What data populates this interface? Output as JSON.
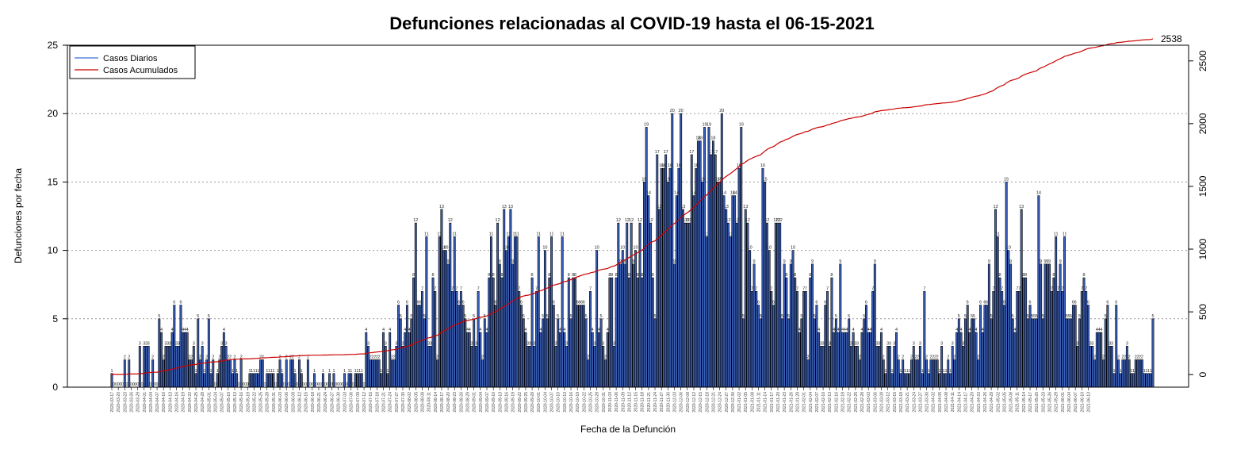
{
  "chart_data": {
    "type": "bar",
    "title": "Defunciones relacionadas al COVID-19 hasta el 06-15-2021",
    "xlabel": "Fecha de la Defunción",
    "ylabel": "Defunciones por fecha",
    "ylim": [
      0,
      25
    ],
    "y_ticks": [
      0,
      5,
      10,
      15,
      20,
      25
    ],
    "y2lim": [
      -100,
      2625
    ],
    "y2_ticks": [
      0,
      500,
      1000,
      1500,
      2000,
      2500
    ],
    "grid": "horizontal dotted",
    "legend_position": "top-left",
    "start_date": "2020-03-17",
    "end_date": "2021-06-15",
    "final_cumulative_label": "2538",
    "colors": {
      "bars": "#3a5fb8",
      "bar_edge": "#000000",
      "cumulative": "#cc0000",
      "daily_legend": "#3a6fd8"
    },
    "series": [
      {
        "name": "Casos Diarios",
        "type": "bar"
      },
      {
        "name": "Casos Acumulados",
        "type": "line"
      }
    ],
    "daily_values": [
      1,
      0,
      0,
      0,
      0,
      0,
      2,
      0,
      2,
      0,
      0,
      0,
      0,
      3,
      0,
      3,
      3,
      3,
      0,
      2,
      0,
      0,
      5,
      4,
      2,
      3,
      3,
      3,
      4,
      6,
      3,
      3,
      6,
      4,
      4,
      4,
      2,
      2,
      3,
      1,
      5,
      2,
      3,
      1,
      2,
      5,
      1,
      2,
      0,
      1,
      2,
      3,
      4,
      3,
      2,
      2,
      1,
      2,
      1,
      0,
      2,
      0,
      0,
      0,
      1,
      1,
      1,
      1,
      1,
      2,
      2,
      0,
      1,
      1,
      1,
      1,
      0,
      1,
      2,
      1,
      0,
      2,
      0,
      2,
      2,
      1,
      0,
      2,
      1,
      0,
      0,
      2,
      0,
      0,
      1,
      0,
      0,
      0,
      1,
      0,
      0,
      1,
      0,
      1,
      0,
      0,
      0,
      0,
      1,
      0,
      1,
      1,
      0,
      1,
      1,
      1,
      1,
      0,
      4,
      3,
      2,
      2,
      2,
      2,
      2,
      1,
      4,
      3,
      1,
      4,
      2,
      2,
      3,
      6,
      5,
      3,
      4,
      6,
      4,
      5,
      8,
      12,
      6,
      6,
      7,
      5,
      11,
      3,
      3,
      8,
      7,
      2,
      11,
      13,
      10,
      10,
      9,
      12,
      7,
      11,
      7,
      6,
      7,
      6,
      5,
      4,
      4,
      3,
      5,
      3,
      7,
      4,
      2,
      5,
      4,
      8,
      11,
      8,
      6,
      12,
      9,
      8,
      13,
      10,
      11,
      13,
      9,
      11,
      11,
      7,
      6,
      5,
      4,
      3,
      3,
      8,
      3,
      7,
      11,
      4,
      5,
      10,
      5,
      8,
      11,
      6,
      3,
      5,
      4,
      11,
      4,
      3,
      8,
      5,
      8,
      8,
      6,
      6,
      6,
      6,
      5,
      2,
      7,
      4,
      3,
      10,
      4,
      5,
      3,
      2,
      4,
      8,
      8,
      3,
      8,
      12,
      9,
      10,
      9,
      12,
      8,
      12,
      9,
      10,
      8,
      12,
      8,
      15,
      19,
      14,
      12,
      8,
      5,
      17,
      13,
      16,
      16,
      17,
      15,
      16,
      20,
      9,
      14,
      16,
      20,
      13,
      12,
      12,
      12,
      17,
      14,
      16,
      18,
      18,
      15,
      19,
      11,
      19,
      17,
      18,
      17,
      15,
      15,
      20,
      14,
      13,
      12,
      11,
      14,
      14,
      12,
      16,
      19,
      5,
      13,
      12,
      10,
      7,
      9,
      7,
      6,
      5,
      16,
      15,
      12,
      10,
      7,
      6,
      12,
      12,
      12,
      5,
      9,
      8,
      5,
      9,
      10,
      8,
      7,
      4,
      5,
      7,
      7,
      2,
      8,
      9,
      5,
      6,
      4,
      3,
      3,
      6,
      7,
      3,
      8,
      4,
      5,
      4,
      9,
      4,
      4,
      4,
      5,
      3,
      4,
      3,
      3,
      2,
      4,
      5,
      6,
      4,
      4,
      7,
      9,
      3,
      3,
      4,
      2,
      1,
      3,
      3,
      1,
      3,
      4,
      2,
      1,
      2,
      1,
      1,
      1,
      2,
      3,
      2,
      2,
      3,
      1,
      7,
      2,
      1,
      2,
      2,
      2,
      2,
      1,
      3,
      1,
      1,
      2,
      1,
      3,
      2,
      4,
      5,
      4,
      3,
      5,
      6,
      4,
      5,
      5,
      4,
      2,
      6,
      4,
      6,
      6,
      9,
      5,
      7,
      13,
      11,
      8,
      7,
      6,
      15,
      10,
      9,
      5,
      4,
      7,
      7,
      13,
      8,
      8,
      5,
      6,
      5,
      5,
      5,
      14,
      9,
      5,
      9,
      9,
      9,
      7,
      8,
      11,
      7,
      9,
      7,
      11,
      5,
      5,
      5,
      6,
      6,
      3,
      5,
      7,
      8,
      7,
      6,
      3,
      3,
      2,
      4,
      4,
      4,
      2,
      5,
      6,
      3,
      3,
      1,
      6,
      2,
      1,
      2,
      2,
      3,
      2,
      1,
      1,
      2,
      2,
      2,
      2,
      1,
      1,
      1,
      1,
      5
    ],
    "date_labels": [
      "2020-03-17",
      "2020-03-20",
      "2020-03-23",
      "2020-03-26",
      "2020-03-29",
      "2020-04-01",
      "2020-04-04",
      "2020-04-07",
      "2020-04-10",
      "2020-04-13",
      "2020-04-16",
      "2020-04-19",
      "2020-04-22",
      "2020-04-25",
      "2020-04-28",
      "2020-05-01",
      "2020-05-04",
      "2020-05-07",
      "2020-05-10",
      "2020-05-13",
      "2020-05-16",
      "2020-05-19",
      "2020-05-22",
      "2020-05-25",
      "2020-05-28",
      "2020-05-31",
      "2020-06-03",
      "2020-06-06",
      "2020-06-09",
      "2020-06-12",
      "2020-06-15",
      "2020-06-18",
      "2020-06-21",
      "2020-06-24",
      "2020-06-27",
      "2020-06-30",
      "2020-07-03",
      "2020-07-06",
      "2020-07-09",
      "2020-07-12",
      "2020-07-15",
      "2020-07-18",
      "2020-07-21",
      "2020-07-24",
      "2020-07-27",
      "2020-07-30",
      "2020-08-02",
      "2020-08-05",
      "2020-08-08",
      "2020-08-11",
      "2020-08-14",
      "2020-08-17",
      "2020-08-20",
      "2020-08-23",
      "2020-08-26",
      "2020-08-29",
      "2020-09-01",
      "2020-09-04",
      "2020-09-07",
      "2020-09-10",
      "2020-09-13",
      "2020-09-16",
      "2020-09-19",
      "2020-09-22",
      "2020-09-25",
      "2020-09-28",
      "2020-10-01",
      "2020-10-04",
      "2020-10-07",
      "2020-10-10",
      "2020-10-13",
      "2020-10-16",
      "2020-10-19",
      "2020-10-22",
      "2020-10-25",
      "2020-10-28",
      "2020-10-31",
      "2020-11-03",
      "2020-11-06",
      "2020-11-09",
      "2020-11-12",
      "2020-11-15",
      "2020-11-18",
      "2020-11-21",
      "2020-11-24",
      "2020-11-27",
      "2020-11-30",
      "2020-12-03",
      "2020-12-06",
      "2020-12-09",
      "2020-12-12",
      "2020-12-15",
      "2020-12-18",
      "2020-12-21",
      "2020-12-24",
      "2020-12-27",
      "2020-12-30",
      "2021-01-02",
      "2021-01-05",
      "2021-01-08",
      "2021-01-11",
      "2021-01-14",
      "2021-01-17",
      "2021-01-20",
      "2021-01-23",
      "2021-01-26",
      "2021-01-29",
      "2021-02-01",
      "2021-02-04",
      "2021-02-07",
      "2021-02-10",
      "2021-02-13",
      "2021-02-16",
      "2021-02-19",
      "2021-02-22",
      "2021-02-25",
      "2021-02-28",
      "2021-03-03",
      "2021-03-06",
      "2021-03-09",
      "2021-03-12",
      "2021-03-15",
      "2021-03-18",
      "2021-03-21",
      "2021-03-24",
      "2021-03-27",
      "2021-03-30",
      "2021-04-02",
      "2021-04-05",
      "2021-04-08",
      "2021-04-11",
      "2021-04-14",
      "2021-04-17",
      "2021-04-20",
      "2021-04-23",
      "2021-04-26",
      "2021-04-29",
      "2021-05-02",
      "2021-05-05",
      "2021-05-08",
      "2021-05-11",
      "2021-05-14",
      "2021-05-17",
      "2021-05-20",
      "2021-05-23",
      "2021-05-26",
      "2021-05-29",
      "2021-06-01",
      "2021-06-04",
      "2021-06-07",
      "2021-06-10",
      "2021-06-13"
    ]
  }
}
